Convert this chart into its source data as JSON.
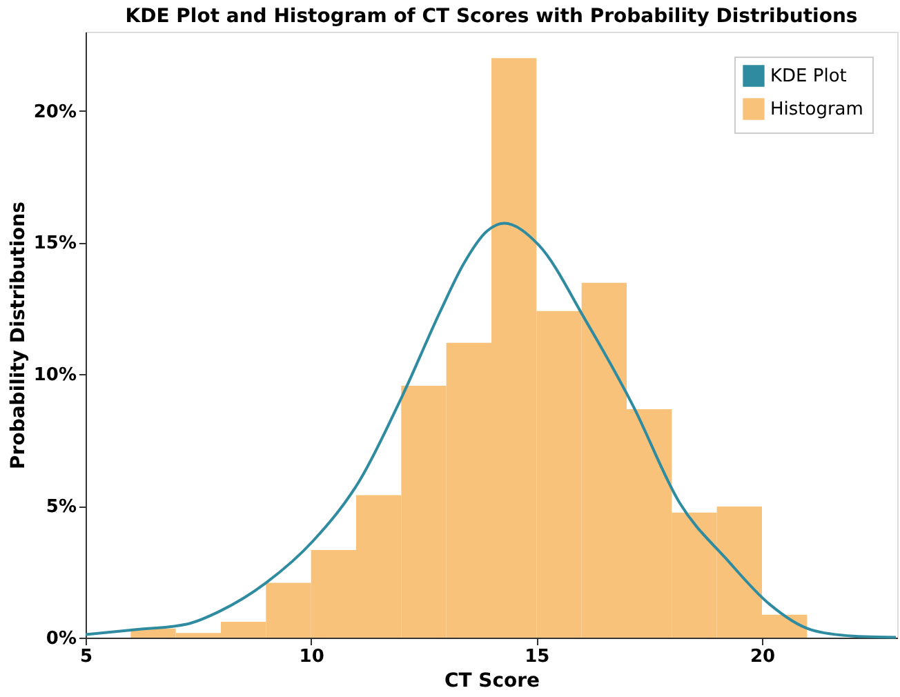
{
  "chart_data": {
    "type": "histogram",
    "title": "KDE Plot and Histogram of CT Scores with Probability Distributions",
    "xlabel": "CT Score",
    "ylabel": "Probability Distributions",
    "bins": [
      6,
      7,
      8,
      9,
      10,
      11,
      12,
      13,
      14,
      15,
      16,
      17,
      18,
      19,
      20,
      21
    ],
    "series": [
      {
        "name": "KDE Plot",
        "type": "line",
        "color": "#2e8ba0",
        "x": [
          5,
          6.09,
          7.24,
          7.97,
          9.0,
          10.05,
          11.09,
          12.03,
          12.87,
          13.38,
          13.9,
          14.28,
          15.05,
          16.09,
          17.13,
          18.18,
          19.22,
          20.16,
          21.09,
          22.03,
          22.97
        ],
        "values": [
          0.12,
          0.3,
          0.51,
          1.0,
          2.08,
          3.68,
          6.0,
          9.2,
          12.4,
          14.18,
          15.43,
          15.73,
          14.9,
          12.04,
          8.84,
          5.1,
          2.97,
          1.28,
          0.3,
          0.06,
          0.01
        ]
      },
      {
        "name": "Histogram",
        "color": "#f8c27a",
        "values": [
          0.35,
          0.18,
          0.6,
          2.08,
          3.33,
          5.41,
          9.56,
          11.19,
          22.0,
          12.4,
          13.47,
          8.67,
          4.75,
          4.98,
          0.87
        ]
      }
    ],
    "xlim": [
      5,
      23
    ],
    "xticks": [
      5,
      10,
      15,
      20
    ],
    "ylim": [
      0,
      23
    ],
    "yticks": [
      {
        "value": 0,
        "label": "0%"
      },
      {
        "value": 5,
        "label": "5%"
      },
      {
        "value": 10,
        "label": "10%"
      },
      {
        "value": 15,
        "label": "15%"
      },
      {
        "value": 20,
        "label": "20%"
      }
    ],
    "grid": false,
    "legend": "top right"
  }
}
